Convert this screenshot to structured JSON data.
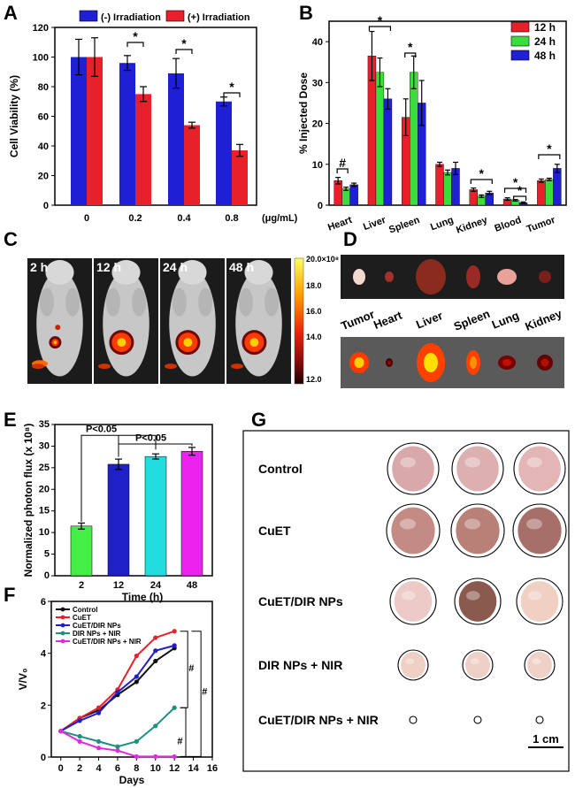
{
  "panels": {
    "A": "A",
    "B": "B",
    "C": "C",
    "D": "D",
    "E": "E",
    "F": "F",
    "G": "G"
  },
  "panelA": {
    "chart_data": {
      "type": "bar",
      "categories": [
        "0",
        "0.2",
        "0.4",
        "0.8"
      ],
      "x_unit": "(μg/mL)",
      "ylabel": "Cell Viability (%)",
      "ylim": [
        0,
        120
      ],
      "yticks": [
        0,
        20,
        40,
        60,
        80,
        100,
        120
      ],
      "series": [
        {
          "name": "(-) Irradiation",
          "color": "#1f1fd6",
          "values": [
            100,
            96,
            89,
            70
          ],
          "errors": [
            12,
            5,
            10,
            3
          ]
        },
        {
          "name": "(+) Irradiation",
          "color": "#e8202a",
          "values": [
            100,
            75,
            54,
            37
          ],
          "errors": [
            13,
            5,
            2,
            4
          ]
        }
      ],
      "sig_marks": [
        "*",
        "*",
        "*"
      ]
    }
  },
  "panelB": {
    "chart_data": {
      "type": "bar",
      "categories": [
        "Heart",
        "Liver",
        "Spleen",
        "Lung",
        "Kidney",
        "Blood",
        "Tumor"
      ],
      "ylabel": "% Injected Dose",
      "ylim": [
        0,
        45
      ],
      "yticks": [
        0,
        10,
        20,
        30,
        40
      ],
      "series": [
        {
          "name": "12 h",
          "color": "#e8202a",
          "values": [
            6,
            36.5,
            21.5,
            10,
            3.8,
            1.5,
            6
          ],
          "errors": [
            0.8,
            6,
            4.5,
            0.5,
            0.4,
            0.3,
            0.4
          ]
        },
        {
          "name": "24 h",
          "color": "#3ddc3d",
          "values": [
            4,
            32.5,
            32.5,
            8,
            2.2,
            1.2,
            6.3
          ],
          "errors": [
            0.4,
            3.5,
            4,
            0.6,
            0.3,
            0.2,
            0.3
          ]
        },
        {
          "name": "48 h",
          "color": "#1f1fd6",
          "values": [
            5,
            26,
            25,
            9,
            3,
            0.6,
            9
          ],
          "errors": [
            0.4,
            2.5,
            5.5,
            1.5,
            0.4,
            0.2,
            1
          ]
        }
      ],
      "sig_marks": [
        "#",
        "*",
        "*",
        "*",
        "*",
        "*",
        "*"
      ]
    }
  },
  "panelC": {
    "times": [
      "2 h",
      "12 h",
      "24 h",
      "48 h"
    ],
    "colorbar_ticks": [
      "20.0×10⁸",
      "18.0",
      "16.0",
      "14.0",
      "12.0"
    ]
  },
  "panelD": {
    "organs": [
      "Tumor",
      "Heart",
      "Liver",
      "Spleen",
      "Lung",
      "Kidney"
    ]
  },
  "panelE": {
    "chart_data": {
      "type": "bar",
      "categories": [
        "2",
        "12",
        "24",
        "48"
      ],
      "xlabel": "Time (h)",
      "ylabel": "Normalized photon flux (x 10⁸)",
      "ylim": [
        0,
        35
      ],
      "yticks": [
        0,
        5,
        10,
        15,
        20,
        25,
        30,
        35
      ],
      "values": [
        11.5,
        25.8,
        27.6,
        28.8
      ],
      "errors": [
        0.7,
        1.2,
        0.6,
        0.9
      ],
      "colors": [
        "#44ee44",
        "#2020c8",
        "#22dddd",
        "#ee22ee"
      ],
      "annotations": [
        "P<0.05",
        "P<0.05"
      ]
    }
  },
  "panelF": {
    "chart_data": {
      "type": "line",
      "xlabel": "Days",
      "ylabel": "V/V₀",
      "xlim": [
        -1,
        16
      ],
      "ylim": [
        0,
        6
      ],
      "xticks": [
        0,
        2,
        4,
        6,
        8,
        10,
        12,
        14,
        16
      ],
      "yticks": [
        0,
        2,
        4,
        6
      ],
      "x": [
        0,
        2,
        4,
        6,
        8,
        10,
        12
      ],
      "series": [
        {
          "name": "Control",
          "color": "#111111",
          "values": [
            1,
            1.5,
            1.8,
            2.4,
            2.9,
            3.7,
            4.2
          ]
        },
        {
          "name": "CuET",
          "color": "#e8202a",
          "values": [
            1,
            1.5,
            1.9,
            2.6,
            3.9,
            4.6,
            4.85
          ]
        },
        {
          "name": "CuET/DIR NPs",
          "color": "#2020c8",
          "values": [
            1,
            1.4,
            1.7,
            2.5,
            3.1,
            4.1,
            4.3
          ]
        },
        {
          "name": "DIR NPs + NIR",
          "color": "#1f8f80",
          "values": [
            1,
            0.8,
            0.6,
            0.4,
            0.6,
            1.2,
            1.9
          ]
        },
        {
          "name": "CuET/DIR NPs + NIR",
          "color": "#e02adf",
          "values": [
            1,
            0.6,
            0.35,
            0.25,
            0.02,
            0.02,
            0.02
          ]
        }
      ],
      "sig_marks": [
        "#",
        "#",
        "#"
      ]
    }
  },
  "panelG": {
    "groups": [
      "Control",
      "CuET",
      "CuET/DIR NPs",
      "DIR NPs + NIR",
      "CuET/DIR NPs + NIR"
    ],
    "scale_label": "1 cm"
  }
}
